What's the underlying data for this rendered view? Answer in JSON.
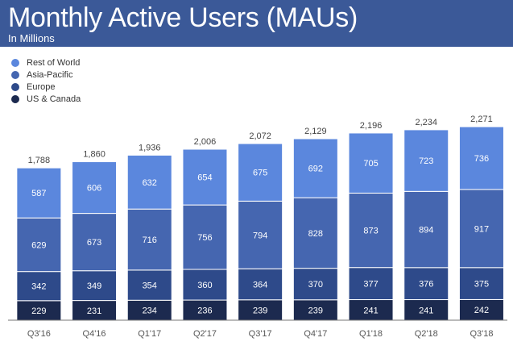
{
  "header": {
    "title": "Monthly Active Users (MAUs)",
    "subtitle": "In Millions"
  },
  "chart_data": {
    "type": "bar",
    "stacked": true,
    "title": "Monthly Active Users (MAUs)",
    "subtitle": "In Millions",
    "xlabel": "",
    "ylabel": "",
    "categories": [
      "Q3'16",
      "Q4'16",
      "Q1'17",
      "Q2'17",
      "Q3'17",
      "Q4'17",
      "Q1'18",
      "Q2'18",
      "Q3'18"
    ],
    "series": [
      {
        "name": "US & Canada",
        "color": "#1c2a4f",
        "values": [
          229,
          231,
          234,
          236,
          239,
          239,
          241,
          241,
          242
        ]
      },
      {
        "name": "Europe",
        "color": "#2e4a8a",
        "values": [
          342,
          349,
          354,
          360,
          364,
          370,
          377,
          376,
          375
        ]
      },
      {
        "name": "Asia-Pacific",
        "color": "#4566b0",
        "values": [
          629,
          673,
          716,
          756,
          794,
          828,
          873,
          894,
          917
        ]
      },
      {
        "name": "Rest of World",
        "color": "#5b87dd",
        "values": [
          587,
          606,
          632,
          654,
          675,
          692,
          705,
          723,
          736
        ]
      }
    ],
    "totals": [
      "1,788",
      "1,860",
      "1,936",
      "2,006",
      "2,072",
      "2,129",
      "2,196",
      "2,234",
      "2,271"
    ],
    "legend": [
      "Rest of World",
      "Asia-Pacific",
      "Europe",
      "US & Canada"
    ],
    "legend_position": "top-left",
    "ylim": [
      0,
      2300
    ],
    "grid": false
  }
}
